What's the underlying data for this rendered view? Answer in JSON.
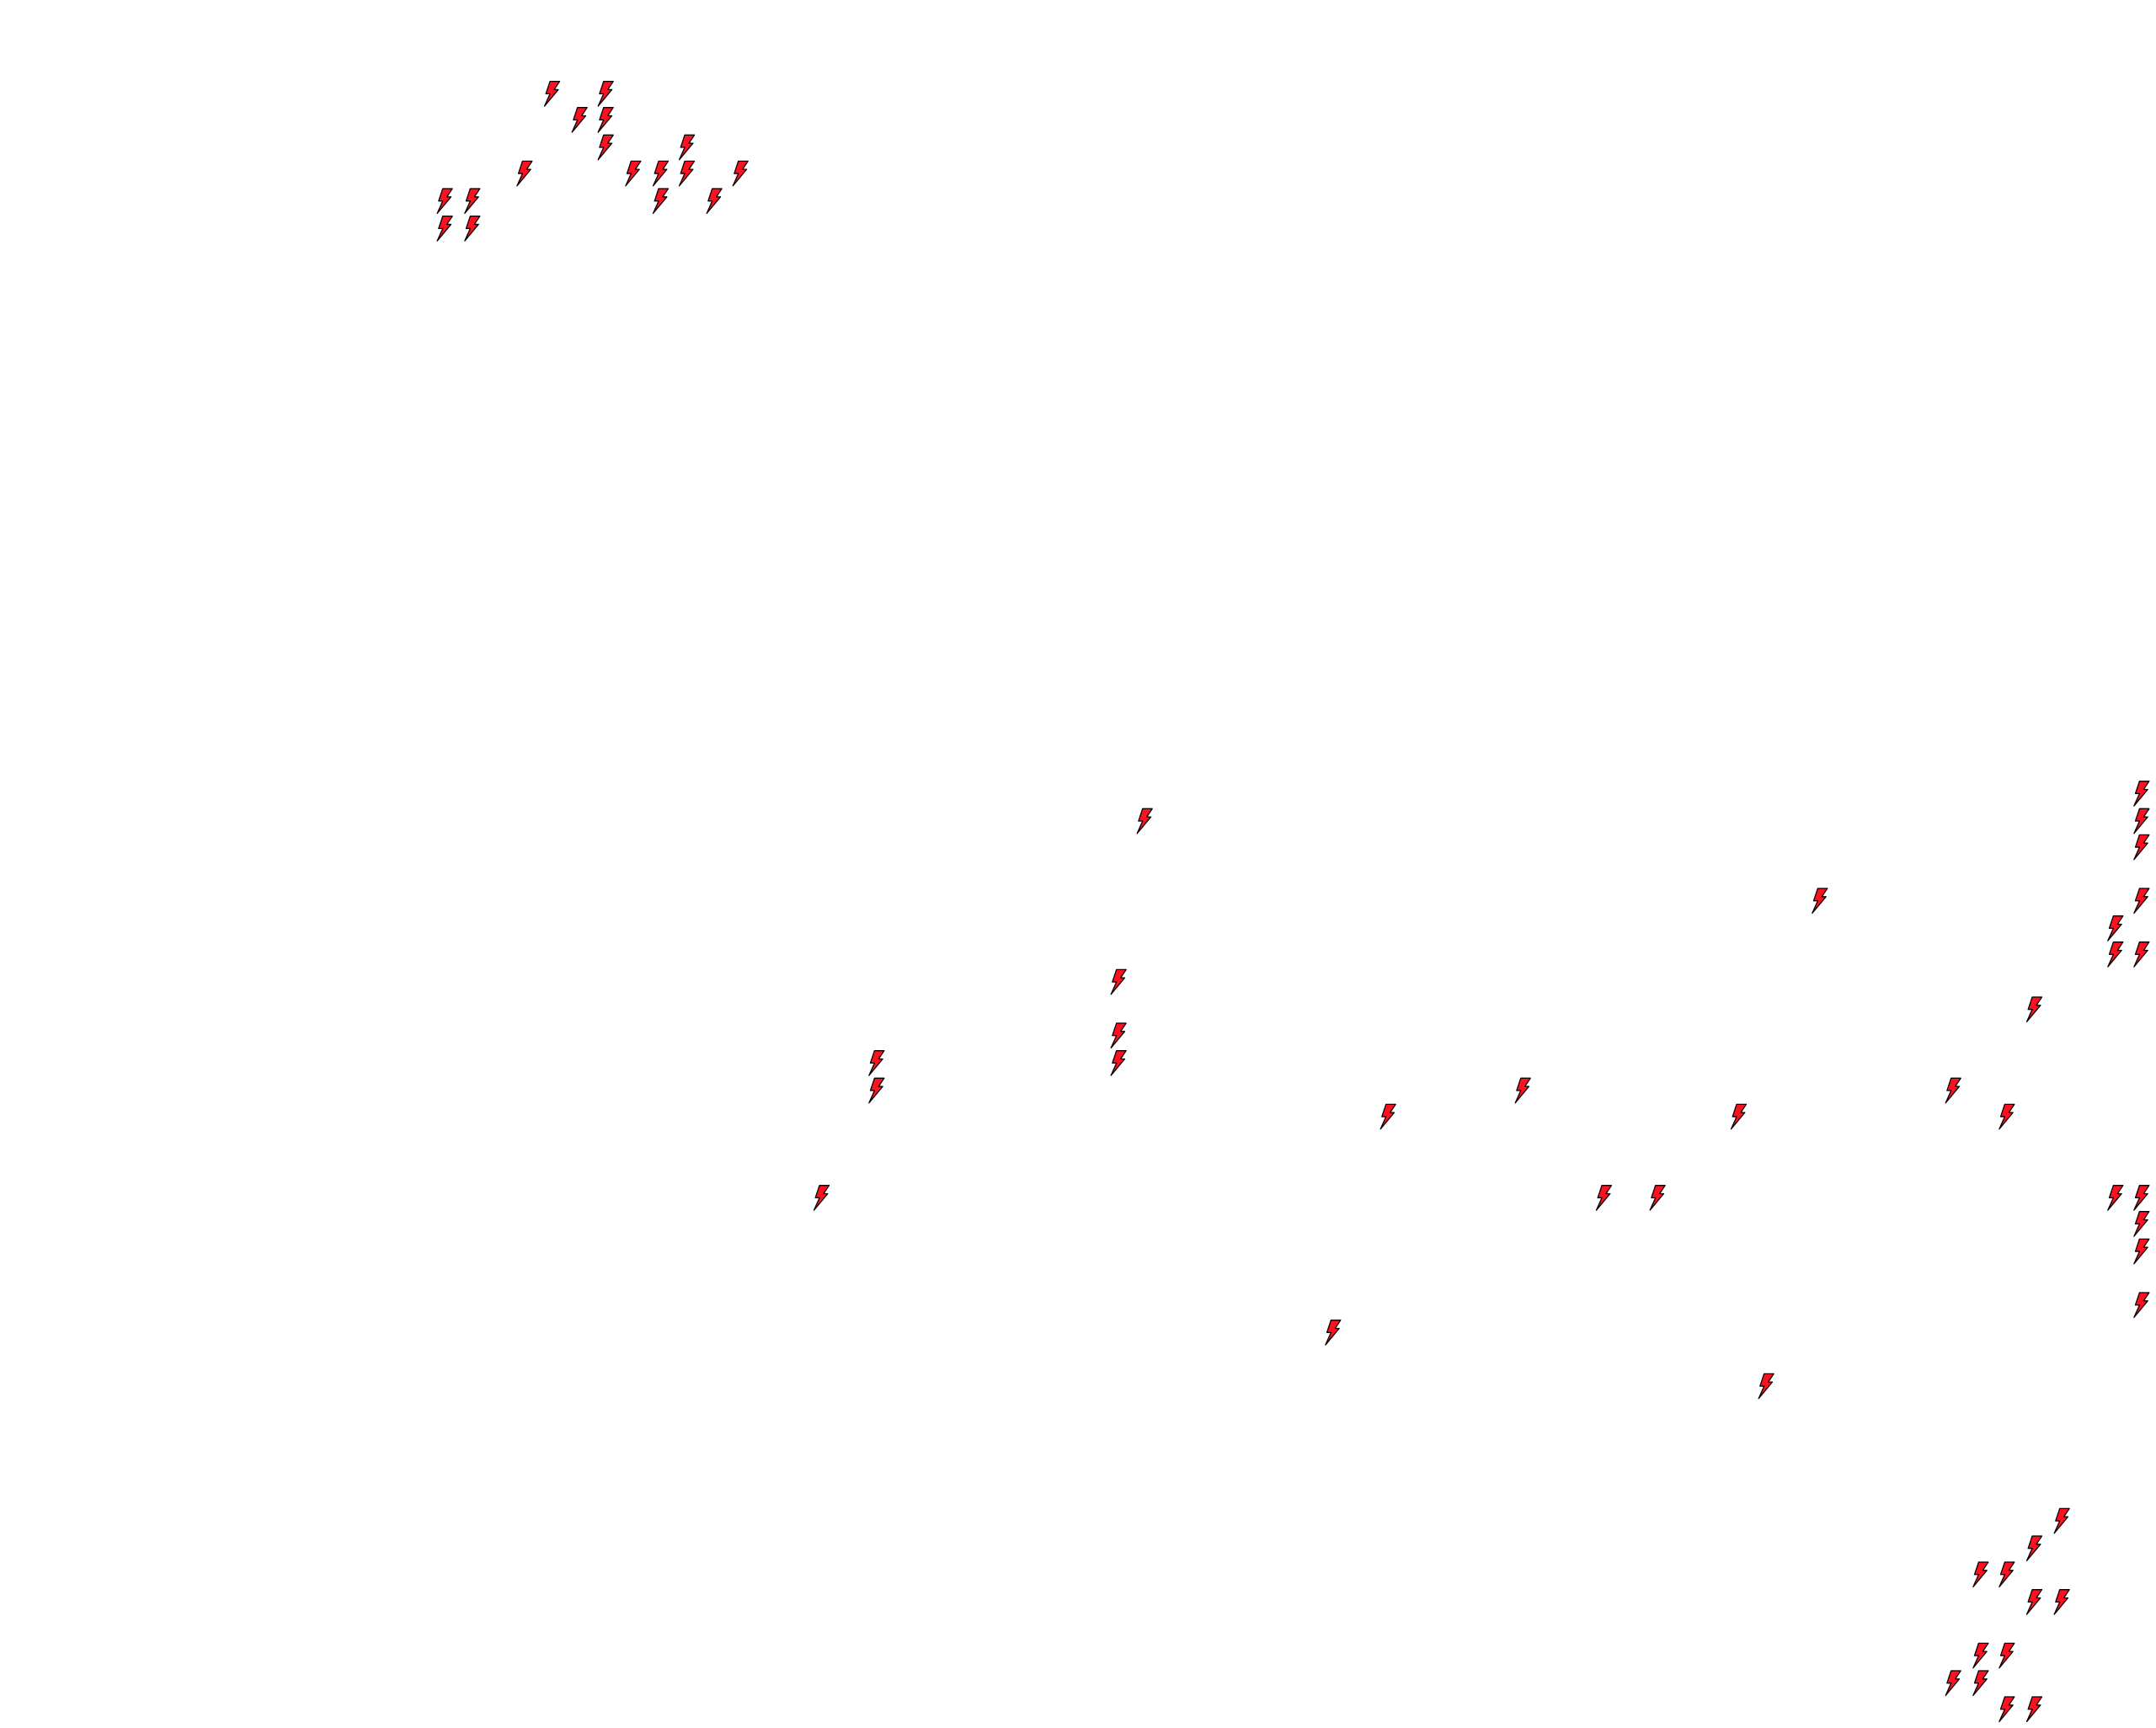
{
  "map": {
    "background_color": "#ffffff",
    "marker": {
      "icon": "lightning-bolt-icon",
      "fill_color": "#ff1020",
      "stroke_color": "#000000"
    }
  }
}
